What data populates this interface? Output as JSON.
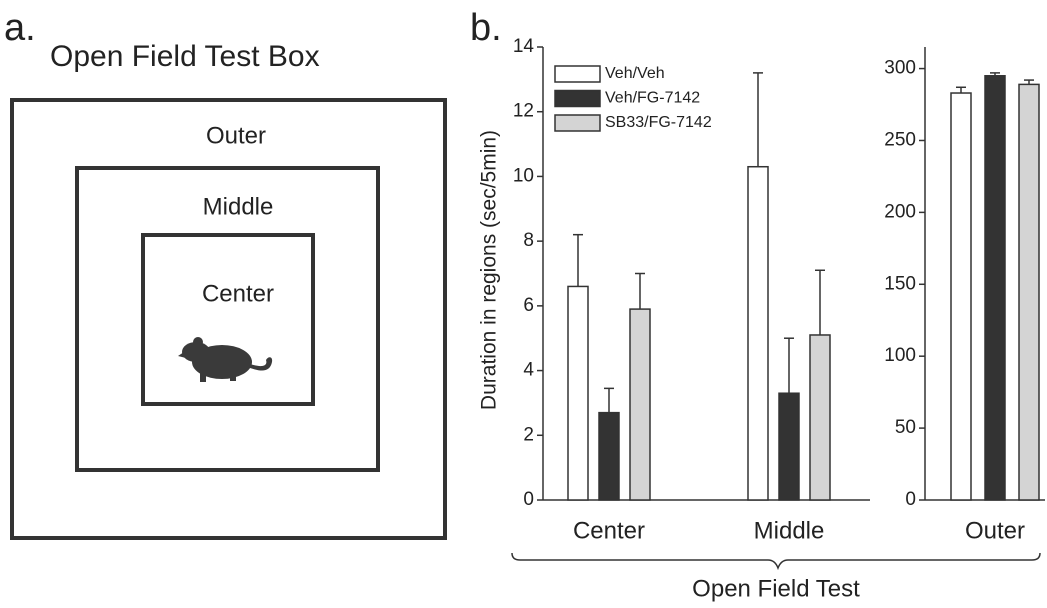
{
  "panel_a": {
    "label": "a.",
    "title": "Open Field Test Box",
    "regions": [
      "Outer",
      "Middle",
      "Center"
    ]
  },
  "panel_b": {
    "label": "b.",
    "xlabel": "Open Field Test"
  },
  "chart_data": [
    {
      "type": "bar",
      "ylabel": "Duration in regions (sec/5min)",
      "categories": [
        "Center",
        "Middle"
      ],
      "series": [
        {
          "name": "Veh/Veh",
          "color": "#ffffff",
          "values": [
            6.6,
            10.3
          ],
          "errors": [
            1.6,
            2.9
          ]
        },
        {
          "name": "Veh/FG-7142",
          "color": "#333333",
          "values": [
            2.7,
            3.3
          ],
          "errors": [
            0.75,
            1.7
          ]
        },
        {
          "name": "SB33/FG-7142",
          "color": "#d4d4d4",
          "values": [
            5.9,
            5.1
          ],
          "errors": [
            1.1,
            2.0
          ]
        }
      ],
      "ylim": [
        0,
        14
      ],
      "yticks": [
        0,
        2,
        4,
        6,
        8,
        10,
        12,
        14
      ],
      "legend": "upper left"
    },
    {
      "type": "bar",
      "categories": [
        "Outer"
      ],
      "series": [
        {
          "color": "#ffffff",
          "values": [
            283
          ],
          "errors": [
            4
          ]
        },
        {
          "color": "#333333",
          "values": [
            295
          ],
          "errors": [
            2
          ]
        },
        {
          "color": "#d4d4d4",
          "values": [
            289
          ],
          "errors": [
            3
          ]
        }
      ],
      "ylim": [
        0,
        315
      ],
      "yticks": [
        0,
        50,
        100,
        150,
        200,
        250,
        300
      ]
    }
  ]
}
